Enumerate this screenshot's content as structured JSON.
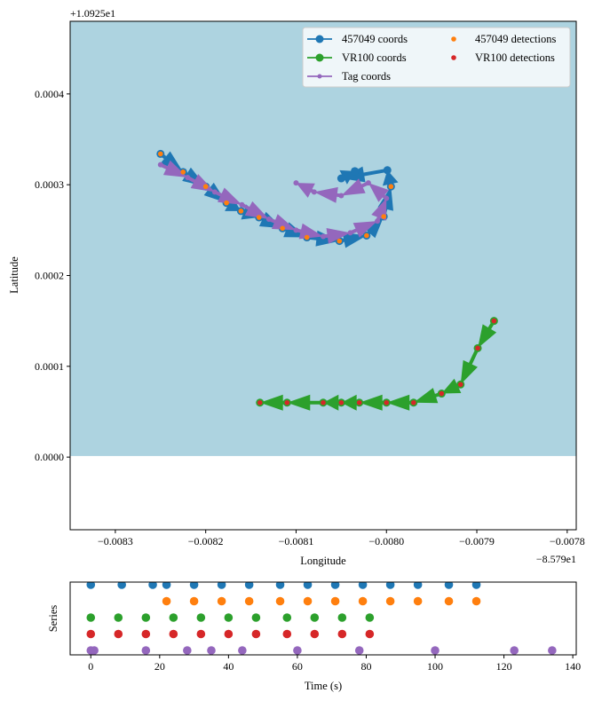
{
  "chart_data": [
    {
      "type": "scatter",
      "xlabel": "Longitude",
      "ylabel": "Latitude",
      "x_offset_label": "−8.579e1",
      "y_offset_label": "+1.0925e1",
      "x_offset": -85.79,
      "y_offset": 10.925,
      "xlim": [
        -0.00835,
        -0.00779
      ],
      "ylim": [
        -8e-05,
        0.00048
      ],
      "xticks": [
        -0.0083,
        -0.0082,
        -0.0081,
        -0.008,
        -0.0079,
        -0.0078
      ],
      "xtick_labels": [
        "−0.0083",
        "−0.0082",
        "−0.0081",
        "−0.0080",
        "−0.0079",
        "−0.0078"
      ],
      "yticks": [
        0.0,
        0.0001,
        0.0002,
        0.0003,
        0.0004
      ],
      "ytick_labels": [
        "0.0000",
        "0.0001",
        "0.0002",
        "0.0003",
        "0.0004"
      ],
      "background_region": {
        "color": "#add3e0",
        "y_from": 1.2e-06,
        "y_to": 0.00048
      },
      "legend": {
        "placement": "top-right",
        "columns": 2,
        "entries": [
          "457049 coords",
          "VR100 coords",
          "Tag coords",
          "457049 detections",
          "VR100 detections"
        ]
      },
      "series": [
        {
          "name": "457049 coords",
          "color": "#1f77b4",
          "marker": "circle",
          "x": [
            -0.00825,
            -0.008225,
            -0.0082,
            -0.008177,
            -0.008161,
            -0.008141,
            -0.008115,
            -0.008088,
            -0.008052,
            -0.008022,
            -0.008003,
            -0.007995,
            -0.007999,
            -0.00805,
            -0.008035
          ],
          "y": [
            0.000334,
            0.000314,
            0.000298,
            0.00028,
            0.000271,
            0.000264,
            0.000252,
            0.000242,
            0.000238,
            0.000244,
            0.000265,
            0.000298,
            0.000316,
            0.000307,
            0.000315
          ]
        },
        {
          "name": "VR100 coords",
          "color": "#2ca02c",
          "marker": "circle",
          "x": [
            -0.007881,
            -0.007899,
            -0.007918,
            -0.007939,
            -0.00797,
            -0.008,
            -0.00803,
            -0.00805,
            -0.00807,
            -0.00811,
            -0.00814
          ],
          "y": [
            0.00015,
            0.00012,
            8e-05,
            7e-05,
            6e-05,
            6e-05,
            6e-05,
            6e-05,
            6e-05,
            6e-05,
            6e-05
          ]
        },
        {
          "name": "Tag coords",
          "color": "#9467bd",
          "marker": "small-circle",
          "x": [
            -0.00825,
            -0.00822,
            -0.00819,
            -0.00816,
            -0.00813,
            -0.0081,
            -0.00807,
            -0.00804,
            -0.00801,
            -0.008,
            -0.00802,
            -0.00805,
            -0.00808,
            -0.0081
          ],
          "y": [
            0.000322,
            0.000308,
            0.000292,
            0.000278,
            0.000262,
            0.00025,
            0.000243,
            0.000247,
            0.00026,
            0.000285,
            0.000302,
            0.000288,
            0.000292,
            0.000302
          ]
        },
        {
          "name": "457049 detections",
          "color": "#ff7f0e",
          "marker": "small-circle",
          "x": [
            -0.00825,
            -0.008225,
            -0.0082,
            -0.008177,
            -0.008161,
            -0.008141,
            -0.008115,
            -0.008088,
            -0.008052,
            -0.008022,
            -0.008003,
            -0.007995
          ],
          "y": [
            0.000334,
            0.000314,
            0.000298,
            0.00028,
            0.000271,
            0.000264,
            0.000252,
            0.000242,
            0.000238,
            0.000244,
            0.000265,
            0.000298
          ]
        },
        {
          "name": "VR100 detections",
          "color": "#d62728",
          "marker": "small-circle",
          "x": [
            -0.007881,
            -0.007899,
            -0.007918,
            -0.007939,
            -0.00797,
            -0.008,
            -0.00803,
            -0.00805,
            -0.00807,
            -0.00811,
            -0.00814
          ],
          "y": [
            0.00015,
            0.00012,
            8e-05,
            7e-05,
            6e-05,
            6e-05,
            6e-05,
            6e-05,
            6e-05,
            6e-05,
            6e-05
          ]
        }
      ]
    },
    {
      "type": "scatter",
      "xlabel": "Time (s)",
      "ylabel": "Series",
      "xlim": [
        -6,
        141
      ],
      "xticks": [
        0,
        20,
        40,
        60,
        80,
        100,
        120,
        140
      ],
      "xtick_labels": [
        "0",
        "20",
        "40",
        "60",
        "80",
        "100",
        "120",
        "140"
      ],
      "series": [
        {
          "color": "#1f77b4",
          "row": 1,
          "x": [
            0,
            9,
            18,
            22,
            30,
            38,
            46,
            55,
            63,
            71,
            79,
            87,
            95,
            104,
            112
          ]
        },
        {
          "color": "#ff7f0e",
          "row": 2,
          "x": [
            22,
            30,
            38,
            46,
            55,
            63,
            71,
            79,
            87,
            95,
            104,
            112
          ]
        },
        {
          "color": "#2ca02c",
          "row": 3,
          "x": [
            0,
            8,
            16,
            24,
            32,
            40,
            48,
            57,
            65,
            73,
            81
          ]
        },
        {
          "color": "#d62728",
          "row": 4,
          "x": [
            0,
            8,
            16,
            24,
            32,
            40,
            48,
            57,
            65,
            73,
            81
          ]
        },
        {
          "color": "#9467bd",
          "row": 5,
          "x": [
            0,
            1,
            16,
            28,
            35,
            44,
            60,
            78,
            100,
            123,
            134
          ]
        }
      ]
    }
  ]
}
